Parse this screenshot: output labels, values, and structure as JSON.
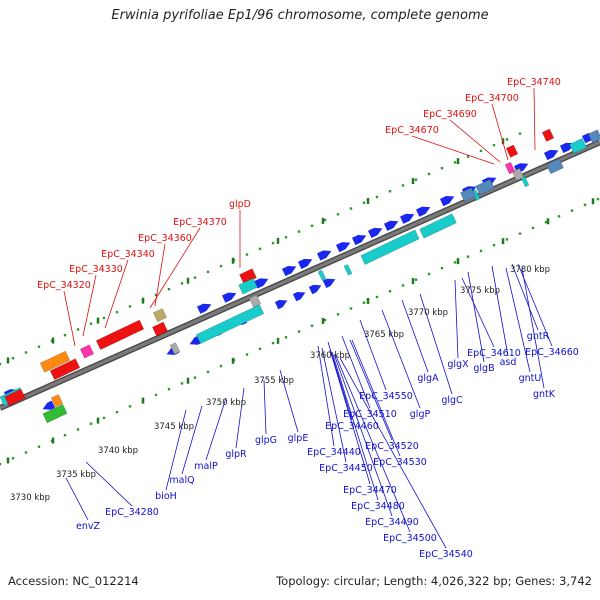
{
  "title": "Erwinia pyrifoliae Ep1/96 chromosome, complete genome",
  "footer": {
    "accession": "Accession: NC_012214",
    "summary": "Topology: circular; Length: 4,026,322 bp; Genes: 3,742"
  },
  "colors": {
    "backbone": "#7a7a7a",
    "dots": "#2a9a2a",
    "ticks": "#1f7a1f",
    "label_upper": "#dd1111",
    "label_lower": "#1111cc",
    "scale": "#222222",
    "cds": "#1a28ee",
    "rna": "#18cccc",
    "ortholog_red": "#ee1111",
    "ortholog_orange": "#ff8811",
    "ortholog_pink": "#ff33aa",
    "ortholog_green": "#33bb33",
    "ortholog_gray": "#aaaaaa",
    "ortholog_olive": "#bbaa66",
    "ortholog_steel": "#5588bb"
  },
  "scale_labels": [
    "3730 kbp",
    "3735 kbp",
    "3740 kbp",
    "3745 kbp",
    "3750 kbp",
    "3755 kbp",
    "3760 kbp",
    "3765 kbp",
    "3770 kbp",
    "3775 kbp",
    "3780 kbp"
  ],
  "upper_labels": [
    "EpC_34740",
    "EpC_34700",
    "EpC_34690",
    "EpC_34670",
    "glpD",
    "EpC_34370",
    "EpC_34360",
    "EpC_34340",
    "EpC_34330",
    "EpC_34320"
  ],
  "lower_labels": [
    "gntR",
    "EpC_34660",
    "asd",
    "glgB",
    "glgX",
    "EpC_34610",
    "gntU",
    "gntK",
    "glgA",
    "glgC",
    "glgP",
    "EpC_34550",
    "EpC_34510",
    "EpC_34460",
    "EpC_34440",
    "EpC_34450",
    "EpC_34520",
    "EpC_34530",
    "EpC_34470",
    "EpC_34480",
    "EpC_34490",
    "EpC_34500",
    "EpC_34540",
    "glpE",
    "glpG",
    "glpR",
    "malP",
    "malQ",
    "bioH",
    "EpC_34280",
    "envZ"
  ]
}
